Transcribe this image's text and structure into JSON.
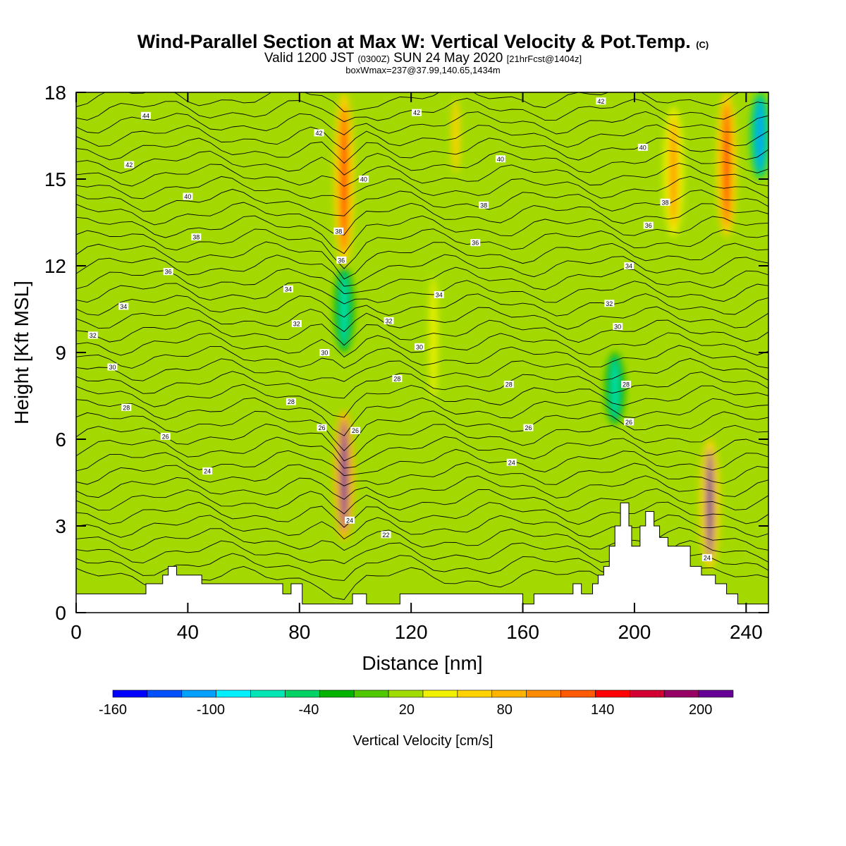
{
  "header": {
    "title": "Wind-Parallel Section at Max W: Vertical Velocity & Pot.Temp.",
    "title_mark": "(C)",
    "valid_prefix": "Valid 1200 JST",
    "valid_zulu": "(0300Z)",
    "valid_date": "SUN 24 May 2020",
    "forecast": "[21hrFcst@1404z]",
    "box_info": "boxWmax=237@37.99,140.65,1434m"
  },
  "colors": {
    "background_fill": "#a3d900",
    "terrain": "#ffffff",
    "contour": "#000000",
    "palette": [
      "#0000ff",
      "#0050ff",
      "#00a0ff",
      "#00f0ff",
      "#00e6b4",
      "#00d264",
      "#00b400",
      "#50c800",
      "#a0dc00",
      "#f0f000",
      "#ffd200",
      "#ffb400",
      "#ff8c00",
      "#ff5a00",
      "#ff0000",
      "#d20032",
      "#960064",
      "#640096"
    ]
  },
  "colorbar": {
    "label": "Vertical Velocity [cm/s]",
    "min": -160,
    "max": 220,
    "tick_labels": [
      "-160",
      "-100",
      "-40",
      "20",
      "80",
      "140",
      "200"
    ]
  },
  "chart_data": {
    "type": "heatmap",
    "xlabel": "Distance [nm]",
    "ylabel": "Height [Kft MSL]",
    "xlim": [
      0,
      248
    ],
    "ylim": [
      0,
      18
    ],
    "x_ticks": [
      0,
      40,
      80,
      120,
      160,
      200,
      240
    ],
    "y_ticks": [
      0,
      3,
      6,
      9,
      12,
      15,
      18
    ],
    "x_tick_labels": [
      "0",
      "40",
      "80",
      "120",
      "160",
      "200",
      "240"
    ],
    "y_tick_labels": [
      "0",
      "3",
      "6",
      "9",
      "12",
      "15",
      "18"
    ],
    "field": "Vertical Velocity [cm/s]",
    "contour_field": "Potential Temperature",
    "terrain_profile": [
      [
        0,
        0.65
      ],
      [
        25,
        0.65
      ],
      [
        25,
        1.0
      ],
      [
        31,
        1.0
      ],
      [
        31,
        1.3
      ],
      [
        33,
        1.3
      ],
      [
        33,
        1.6
      ],
      [
        36,
        1.6
      ],
      [
        36,
        1.3
      ],
      [
        45,
        1.3
      ],
      [
        45,
        1.0
      ],
      [
        74,
        1.0
      ],
      [
        74,
        0.65
      ],
      [
        77,
        0.65
      ],
      [
        77,
        1.0
      ],
      [
        81,
        1.0
      ],
      [
        81,
        0.3
      ],
      [
        95,
        0.3
      ],
      [
        95,
        0.3
      ],
      [
        99,
        0.3
      ],
      [
        99,
        0.65
      ],
      [
        104,
        0.65
      ],
      [
        104,
        0.3
      ],
      [
        116,
        0.3
      ],
      [
        116,
        0.65
      ],
      [
        160,
        0.65
      ],
      [
        160,
        0.3
      ],
      [
        164,
        0.3
      ],
      [
        164,
        0.65
      ],
      [
        178,
        0.65
      ],
      [
        178,
        1.0
      ],
      [
        181,
        1.0
      ],
      [
        181,
        0.65
      ],
      [
        185,
        0.65
      ],
      [
        185,
        1.0
      ],
      [
        187,
        1.0
      ],
      [
        187,
        1.3
      ],
      [
        189,
        1.3
      ],
      [
        189,
        1.6
      ],
      [
        191,
        1.6
      ],
      [
        191,
        2.3
      ],
      [
        193,
        2.3
      ],
      [
        193,
        3.0
      ],
      [
        195,
        3.0
      ],
      [
        195,
        3.8
      ],
      [
        198,
        3.8
      ],
      [
        198,
        3.0
      ],
      [
        199,
        3.0
      ],
      [
        199,
        2.3
      ],
      [
        202,
        2.3
      ],
      [
        202,
        3.0
      ],
      [
        204,
        3.0
      ],
      [
        204,
        3.5
      ],
      [
        207,
        3.5
      ],
      [
        207,
        3.0
      ],
      [
        209,
        3.0
      ],
      [
        209,
        2.6
      ],
      [
        212,
        2.6
      ],
      [
        212,
        2.3
      ],
      [
        220,
        2.3
      ],
      [
        220,
        1.6
      ],
      [
        224,
        1.6
      ],
      [
        224,
        1.3
      ],
      [
        229,
        1.3
      ],
      [
        229,
        1.0
      ],
      [
        233,
        1.0
      ],
      [
        233,
        0.65
      ],
      [
        237,
        0.65
      ],
      [
        237,
        0.3
      ],
      [
        248,
        0.3
      ]
    ],
    "vertical_velocity_cells": [
      {
        "x": 96,
        "y0": 2.5,
        "y1": 7.0,
        "w": 220
      },
      {
        "x": 96,
        "y0": 12.0,
        "y1": 18.0,
        "w": 150
      },
      {
        "x": 96,
        "y0": 9.0,
        "y1": 12.0,
        "w": -60
      },
      {
        "x": 227,
        "y0": 1.5,
        "y1": 6.0,
        "w": 200
      },
      {
        "x": 233,
        "y0": 13.0,
        "y1": 18.0,
        "w": 150
      },
      {
        "x": 214,
        "y0": 13.0,
        "y1": 17.5,
        "w": 100
      },
      {
        "x": 193,
        "y0": 6.5,
        "y1": 9.0,
        "w": -60
      },
      {
        "x": 245,
        "y0": 15.0,
        "y1": 18.0,
        "w": -100
      },
      {
        "x": 128,
        "y0": 7.0,
        "y1": 12.0,
        "w": 50
      },
      {
        "x": 136,
        "y0": 15.0,
        "y1": 18.0,
        "w": 60
      }
    ],
    "theta_contour_labels": [
      {
        "text": "44",
        "x": 25,
        "y": 17.2
      },
      {
        "text": "42",
        "x": 19,
        "y": 15.5
      },
      {
        "text": "40",
        "x": 40,
        "y": 14.4
      },
      {
        "text": "38",
        "x": 43,
        "y": 13.0
      },
      {
        "text": "36",
        "x": 33,
        "y": 11.8
      },
      {
        "text": "34",
        "x": 17,
        "y": 10.6
      },
      {
        "text": "32",
        "x": 6,
        "y": 9.6
      },
      {
        "text": "30",
        "x": 13,
        "y": 8.5
      },
      {
        "text": "28",
        "x": 18,
        "y": 7.1
      },
      {
        "text": "26",
        "x": 32,
        "y": 6.1
      },
      {
        "text": "24",
        "x": 47,
        "y": 4.9
      },
      {
        "text": "42",
        "x": 87,
        "y": 16.6
      },
      {
        "text": "40",
        "x": 103,
        "y": 15.0
      },
      {
        "text": "38",
        "x": 94,
        "y": 13.2
      },
      {
        "text": "36",
        "x": 95,
        "y": 12.2
      },
      {
        "text": "34",
        "x": 76,
        "y": 11.2
      },
      {
        "text": "32",
        "x": 79,
        "y": 10.0
      },
      {
        "text": "30",
        "x": 89,
        "y": 9.0
      },
      {
        "text": "28",
        "x": 77,
        "y": 7.3
      },
      {
        "text": "26",
        "x": 88,
        "y": 6.4
      },
      {
        "text": "26",
        "x": 100,
        "y": 6.3
      },
      {
        "text": "24",
        "x": 98,
        "y": 3.2
      },
      {
        "text": "22",
        "x": 111,
        "y": 2.7
      },
      {
        "text": "42",
        "x": 122,
        "y": 17.3
      },
      {
        "text": "40",
        "x": 152,
        "y": 15.7
      },
      {
        "text": "38",
        "x": 146,
        "y": 14.1
      },
      {
        "text": "36",
        "x": 143,
        "y": 12.8
      },
      {
        "text": "34",
        "x": 130,
        "y": 11.0
      },
      {
        "text": "32",
        "x": 112,
        "y": 10.1
      },
      {
        "text": "30",
        "x": 123,
        "y": 9.2
      },
      {
        "text": "28",
        "x": 115,
        "y": 8.1
      },
      {
        "text": "28",
        "x": 155,
        "y": 7.9
      },
      {
        "text": "26",
        "x": 162,
        "y": 6.4
      },
      {
        "text": "24",
        "x": 156,
        "y": 5.2
      },
      {
        "text": "42",
        "x": 188,
        "y": 17.7
      },
      {
        "text": "40",
        "x": 203,
        "y": 16.1
      },
      {
        "text": "38",
        "x": 211,
        "y": 14.2
      },
      {
        "text": "36",
        "x": 205,
        "y": 13.4
      },
      {
        "text": "34",
        "x": 198,
        "y": 12.0
      },
      {
        "text": "32",
        "x": 191,
        "y": 10.7
      },
      {
        "text": "30",
        "x": 194,
        "y": 9.9
      },
      {
        "text": "28",
        "x": 197,
        "y": 7.9
      },
      {
        "text": "26",
        "x": 198,
        "y": 6.6
      },
      {
        "text": "24",
        "x": 226,
        "y": 1.9
      }
    ]
  }
}
